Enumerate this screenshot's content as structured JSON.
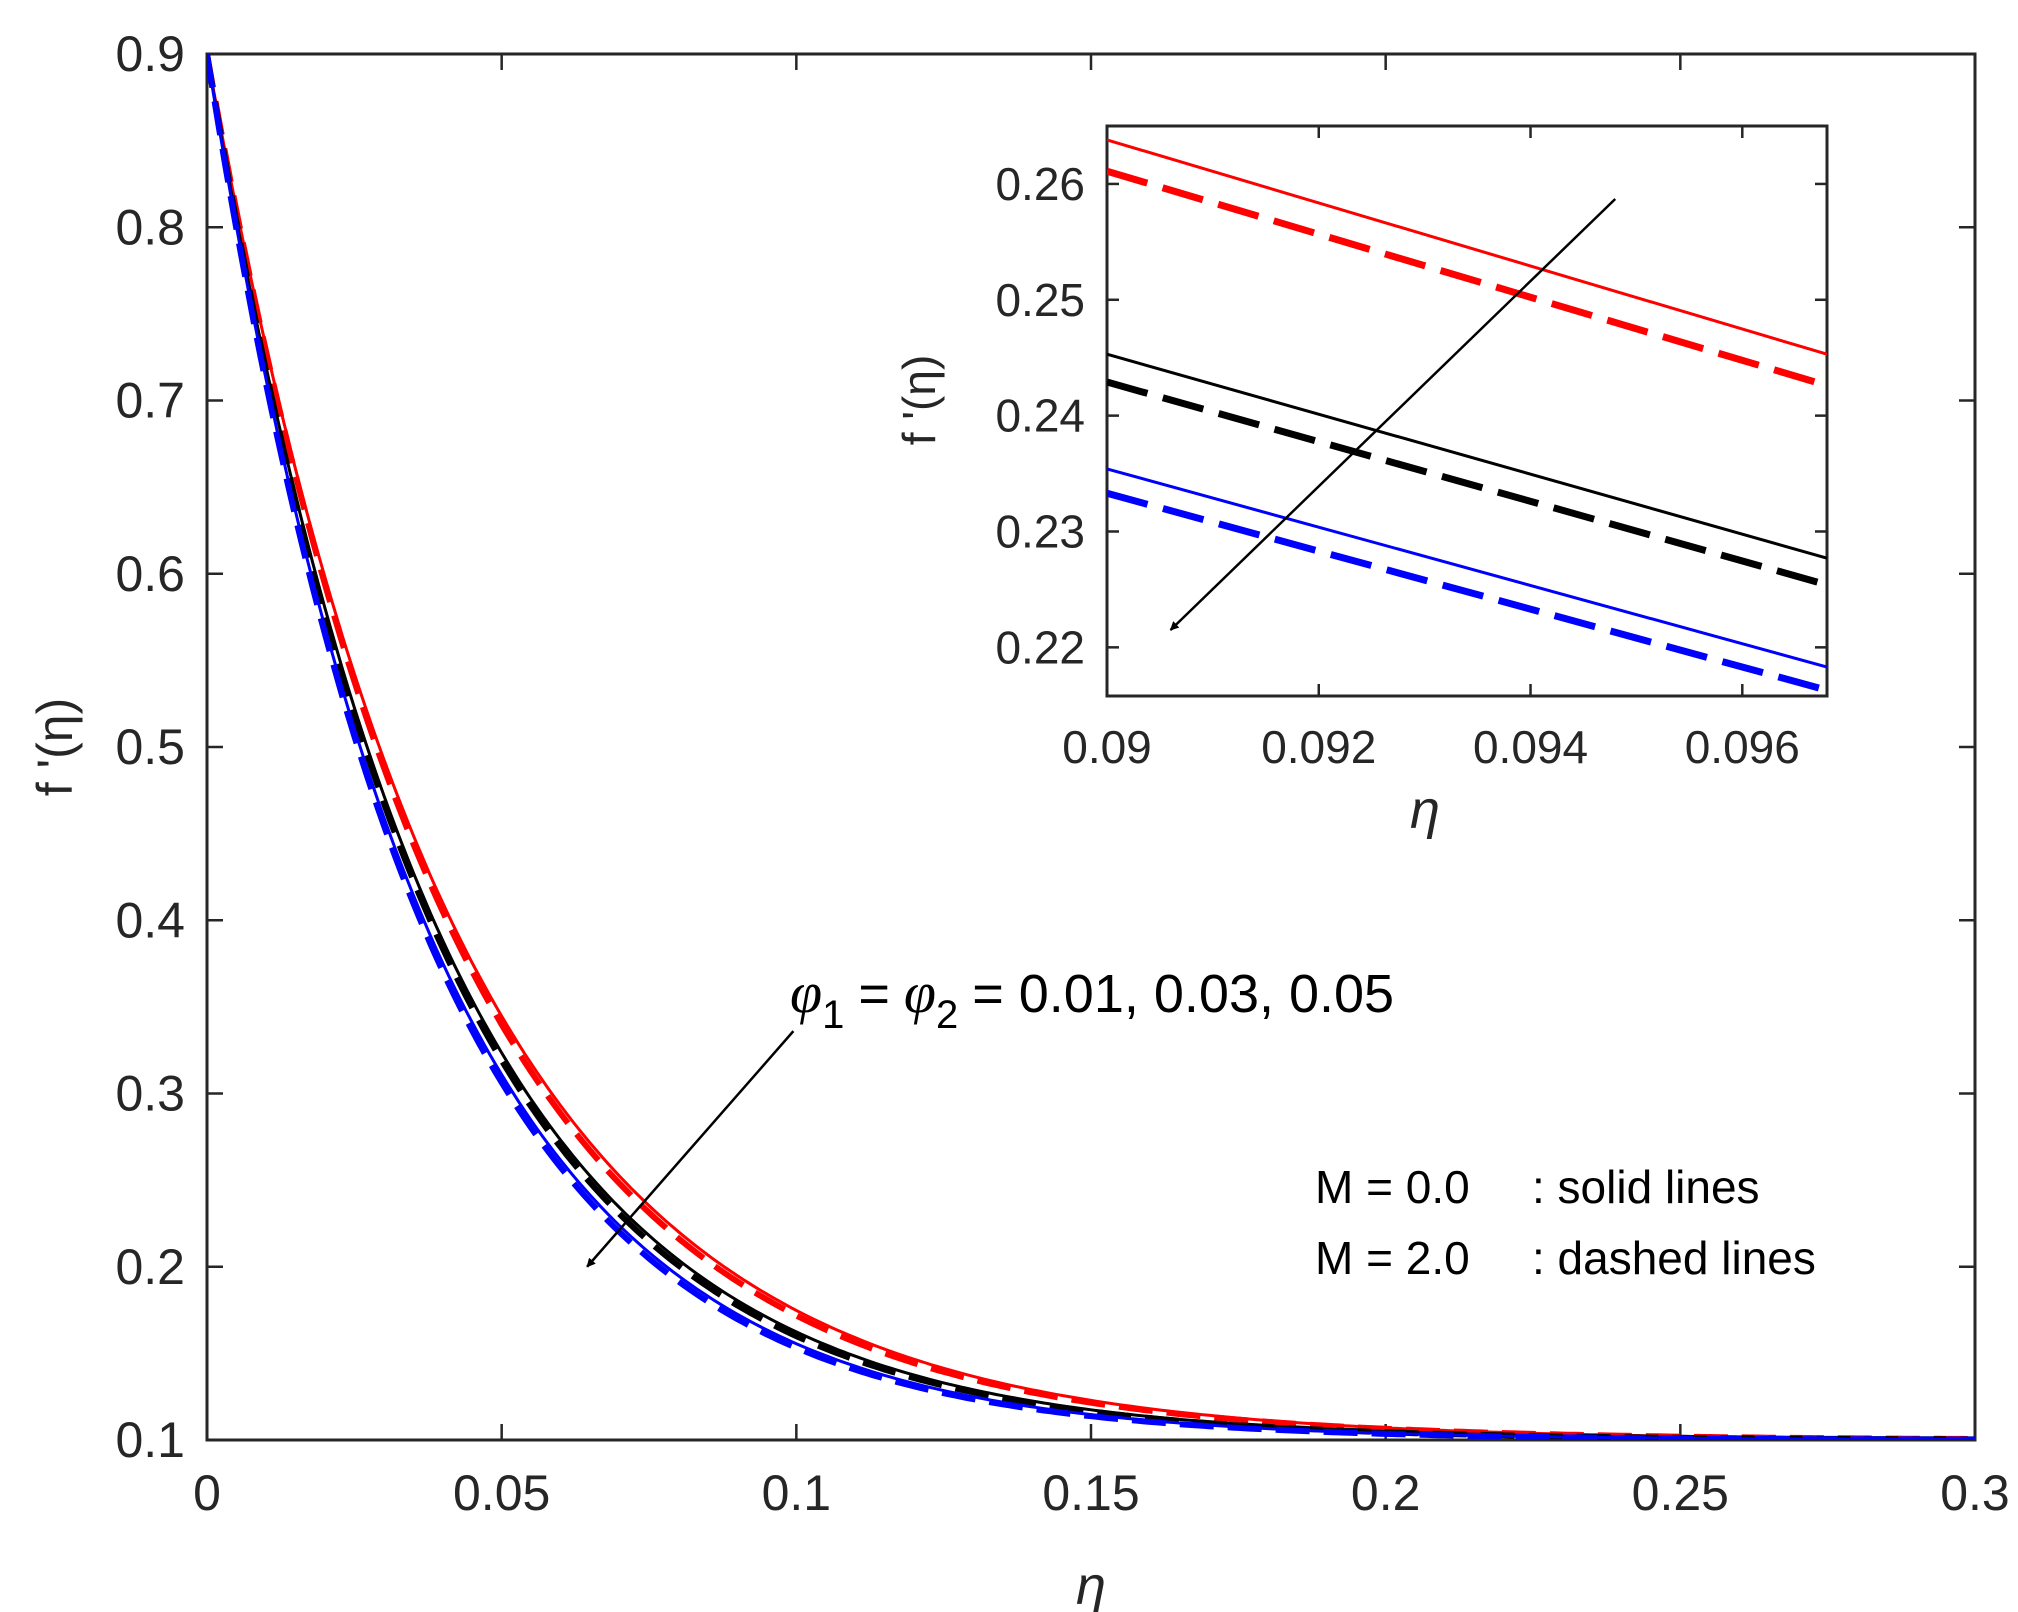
{
  "chart_data": [
    {
      "type": "line",
      "panel": "main",
      "xlabel": "η",
      "ylabel": "f '(η)",
      "xlim": [
        0,
        0.3
      ],
      "ylim": [
        0.1,
        0.9
      ],
      "x_ticks": [
        0,
        0.05,
        0.1,
        0.15,
        0.2,
        0.25,
        0.3
      ],
      "x_tick_labels": [
        "0",
        "0.05",
        "0.1",
        "0.15",
        "0.2",
        "0.25",
        "0.3"
      ],
      "y_ticks": [
        0.1,
        0.2,
        0.3,
        0.4,
        0.5,
        0.6,
        0.7,
        0.8,
        0.9
      ],
      "y_tick_labels": [
        "0.1",
        "0.2",
        "0.3",
        "0.4",
        "0.5",
        "0.6",
        "0.7",
        "0.8",
        "0.9"
      ],
      "grid": false,
      "curve_model": "f'(η) = 0.1 + 0.8·exp(-η/L)",
      "series": [
        {
          "name": "φ1 = φ2 = 0.01, M = 0.0",
          "color": "#ff0000",
          "style": "solid",
          "decay_length": 0.0422,
          "width": 3
        },
        {
          "name": "φ1 = φ2 = 0.01, M = 2.0",
          "color": "#ff0000",
          "style": "dashed",
          "decay_length": 0.0415,
          "width": 6
        },
        {
          "name": "φ1 = φ2 = 0.03, M = 0.0",
          "color": "#000000",
          "style": "solid",
          "decay_length": 0.0392,
          "width": 3
        },
        {
          "name": "φ1 = φ2 = 0.03, M = 2.0",
          "color": "#000000",
          "style": "dashed",
          "decay_length": 0.0386,
          "width": 6
        },
        {
          "name": "φ1 = φ2 = 0.05, M = 0.0",
          "color": "#0000ff",
          "style": "solid",
          "decay_length": 0.0375,
          "width": 3
        },
        {
          "name": "φ1 = φ2 = 0.05, M = 2.0",
          "color": "#0000ff",
          "style": "dashed",
          "decay_length": 0.0369,
          "width": 6
        }
      ],
      "annotations": {
        "phi_text": {
          "phi1_symbol": "φ",
          "phi1_sub": "1",
          "phi2_symbol": "φ",
          "phi2_sub": "2",
          "equals": "=",
          "values": "= 0.01, 0.03, 0.05"
        },
        "arrow": {
          "from": [
            0.0995,
            0.336
          ],
          "to": [
            0.0645,
            0.2
          ],
          "meaning": "increasing φ1 = φ2"
        },
        "legend_solid": {
          "label": "M = 0.0",
          "desc": ": solid lines"
        },
        "legend_dashed": {
          "label": "M = 2.0",
          "desc": ": dashed lines"
        }
      }
    },
    {
      "type": "line",
      "panel": "inset (zoom)",
      "xlabel": "η",
      "ylabel": "f '(η)",
      "xlim": [
        0.09,
        0.0968
      ],
      "ylim": [
        0.2158,
        0.265
      ],
      "x_ticks": [
        0.09,
        0.092,
        0.094,
        0.096
      ],
      "x_tick_labels": [
        "0.09",
        "0.092",
        "0.094",
        "0.096"
      ],
      "y_ticks": [
        0.22,
        0.23,
        0.24,
        0.25,
        0.26
      ],
      "y_tick_labels": [
        "0.22",
        "0.23",
        "0.24",
        "0.25",
        "0.26"
      ],
      "grid": false,
      "series": [
        {
          "name": "φ = 0.01, M = 0.0",
          "color": "#ff0000",
          "style": "solid",
          "y_start": 0.2638,
          "y_end": 0.2453,
          "width": 3
        },
        {
          "name": "φ = 0.01, M = 2.0",
          "color": "#ff0000",
          "style": "dashed",
          "y_start": 0.2611,
          "y_end": 0.2426,
          "width": 7
        },
        {
          "name": "φ = 0.03, M = 0.0",
          "color": "#000000",
          "style": "solid",
          "y_start": 0.2453,
          "y_end": 0.2277,
          "width": 3
        },
        {
          "name": "φ = 0.03, M = 2.0",
          "color": "#000000",
          "style": "dashed",
          "y_start": 0.2429,
          "y_end": 0.2254,
          "width": 7
        },
        {
          "name": "φ = 0.05, M = 0.0",
          "color": "#0000ff",
          "style": "solid",
          "y_start": 0.2354,
          "y_end": 0.2183,
          "width": 3
        },
        {
          "name": "φ = 0.05, M = 2.0",
          "color": "#0000ff",
          "style": "dashed",
          "y_start": 0.2333,
          "y_end": 0.2163,
          "width": 7
        }
      ],
      "arrow": {
        "from": [
          0.0948,
          0.2587
        ],
        "to": [
          0.0906,
          0.2215
        ]
      }
    }
  ]
}
